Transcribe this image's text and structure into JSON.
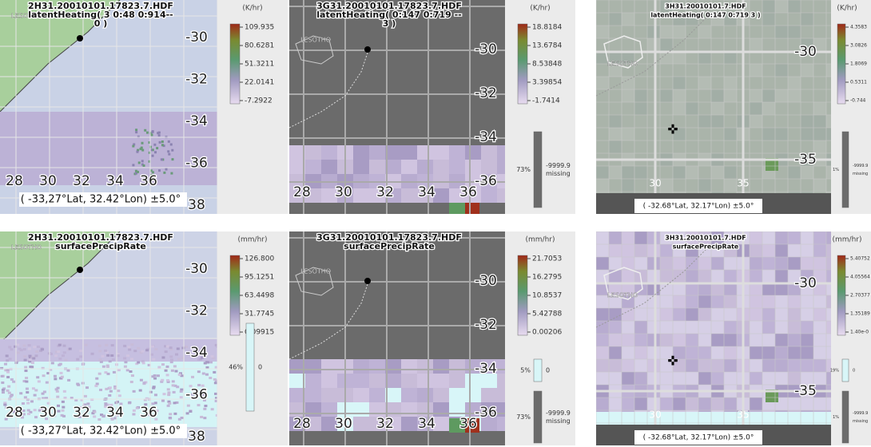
{
  "panels": [
    {
      "title": [
        "2H31.20010101.17823.7.HDF",
        "latentHeating( 3 0:48 0:914--",
        "0 )"
      ],
      "region": "LESOTHO",
      "lat_labels": [
        "-30",
        "-32",
        "-34",
        "-36",
        "38"
      ],
      "lon_labels": [
        "28",
        "30",
        "32",
        "34",
        "36"
      ],
      "footer": "( -33,27°Lat, 32.42°Lon) ±5.0°",
      "unit": "(K/hr)",
      "scale_labels": [
        "109.935",
        "80.6281",
        "51.3211",
        "22.0141",
        "-7.2922"
      ],
      "missing": []
    },
    {
      "title": [
        "3G31.20010101.17823.7.HDF",
        "latentHeating( 0:147 0:719 --",
        "3 )"
      ],
      "region": "LESOTHO",
      "lat_labels": [
        "-30",
        "-32",
        "-34",
        "-36"
      ],
      "lon_labels": [
        "28",
        "30",
        "32",
        "34",
        "36"
      ],
      "unit": "(K/hr)",
      "scale_labels": [
        "18.8184",
        "13.6784",
        "8.53848",
        "3.39854",
        "-1.7414"
      ],
      "missing": [
        {
          "percent": "73%",
          "lines": [
            "-9999.9",
            "missing"
          ]
        }
      ]
    },
    {
      "title": [
        "3H31.20010101.7.HDF",
        "latentHeating( 0:147 0:719 3 )"
      ],
      "region": "LESOTHO",
      "lat_labels": [
        "-30",
        "-35"
      ],
      "lon_labels": [
        "30",
        "35"
      ],
      "footer": "( -32.68°Lat, 32.17°Lon) ±5.0°",
      "unit": "(K/hr)",
      "scale_labels": [
        "4.3583",
        "3.0826",
        "1.8069",
        "0.5311",
        "-0.744"
      ],
      "missing": [
        {
          "percent": "1%",
          "lines": [
            "-9999.9",
            "missing"
          ]
        }
      ]
    },
    {
      "title": [
        "2H31.20010101.17823.7.HDF",
        "surfacePrecipRate"
      ],
      "region": "LESOTHO",
      "lat_labels": [
        "-30",
        "-32",
        "-34",
        "-36",
        "38"
      ],
      "lon_labels": [
        "28",
        "30",
        "32",
        "34",
        "36"
      ],
      "footer": "( -33,27°Lat, 32.42°Lon) ±5.0°",
      "unit": "(mm/hr)",
      "scale_labels": [
        "126.800",
        "95.1251",
        "63.4498",
        "31.7745",
        "0.09915"
      ],
      "missing": [
        {
          "percent": "46%",
          "lines": [
            "0"
          ]
        }
      ]
    },
    {
      "title": [
        "3G31.20010101.17823.7.HDF",
        "surfacePrecipRate"
      ],
      "region": "LESOTHO",
      "lat_labels": [
        "-30",
        "-32",
        "-34",
        "-36"
      ],
      "lon_labels": [
        "28",
        "30",
        "32",
        "34",
        "36"
      ],
      "unit": "(mm/hr)",
      "scale_labels": [
        "21.7053",
        "16.2795",
        "10.8537",
        "5.42788",
        "0.00206"
      ],
      "missing": [
        {
          "percent": "5%",
          "lines": [
            "0"
          ]
        },
        {
          "percent": "73%",
          "lines": [
            "-9999.9",
            "missing"
          ]
        }
      ]
    },
    {
      "title": [
        "3H31.20010101.7.HDF",
        "surfacePrecipRate"
      ],
      "region": "LESOTHO",
      "lat_labels": [
        "-30",
        "-35"
      ],
      "lon_labels": [
        "30",
        "35"
      ],
      "footer": "( -32.68°Lat, 32.17°Lon) ±5.0°",
      "unit": "(mm/hr)",
      "scale_labels": [
        "5.40752",
        "4.05564",
        "2.70377",
        "1.35189",
        "1.40e-0"
      ],
      "missing": [
        {
          "percent": "19%",
          "lines": [
            "0"
          ]
        },
        {
          "percent": "1%",
          "lines": [
            "-9999.9",
            "missing"
          ]
        }
      ]
    }
  ]
}
